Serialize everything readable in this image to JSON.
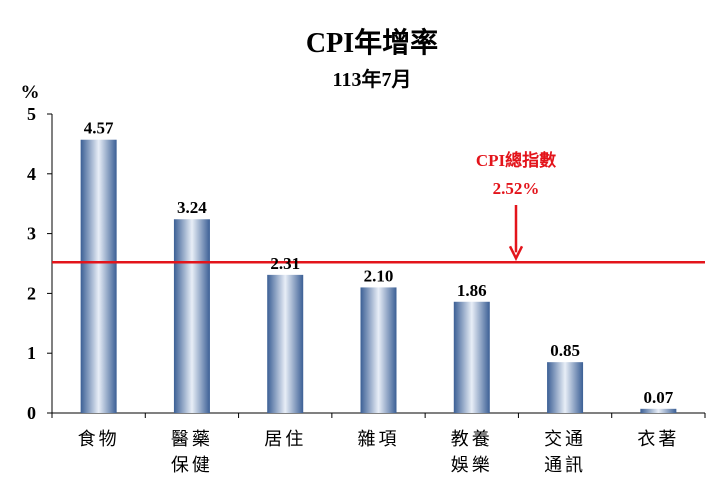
{
  "chart_data": {
    "type": "bar",
    "title": "CPI年增率",
    "subtitle": "113年7月",
    "ylabel": "%",
    "ylim": [
      0,
      5
    ],
    "yticks": [
      0,
      1,
      2,
      3,
      4,
      5
    ],
    "grid": false,
    "categories": [
      [
        "食物"
      ],
      [
        "醫藥",
        "保健"
      ],
      [
        "居住"
      ],
      [
        "雜項"
      ],
      [
        "教養",
        "娛樂"
      ],
      [
        "交通",
        "通訊"
      ],
      [
        "衣著"
      ]
    ],
    "values": [
      4.57,
      3.24,
      2.31,
      2.1,
      1.86,
      0.85,
      0.07
    ],
    "value_labels": [
      "4.57",
      "3.24",
      "2.31",
      "2.10",
      "1.86",
      "0.85",
      "0.07"
    ],
    "reference_line": {
      "value": 2.52,
      "label": "CPI總指數",
      "value_label": "2.52%",
      "color": "#e3141b"
    },
    "bar_colors": {
      "edge": "#3b5f95",
      "center": "#e8eef7"
    }
  }
}
